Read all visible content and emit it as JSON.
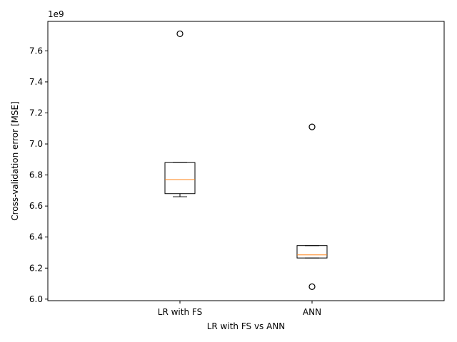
{
  "chart_data": {
    "type": "box",
    "title": "",
    "xlabel": "LR with FS vs ANN",
    "ylabel": "Cross-validation error [MSE]",
    "y_offset_label": "1e9",
    "y_scale_factor": 1000000000,
    "ylim": [
      5.99,
      7.79
    ],
    "yticks": [
      6.0,
      6.2,
      6.4,
      6.6,
      6.8,
      7.0,
      7.2,
      7.4,
      7.6
    ],
    "ytick_labels": [
      "6.0",
      "6.2",
      "6.4",
      "6.6",
      "6.8",
      "7.0",
      "7.2",
      "7.4",
      "7.6"
    ],
    "categories": [
      "LR with FS",
      "ANN"
    ],
    "boxes": [
      {
        "category": "LR with FS",
        "whisker_low": 6.66,
        "q1": 6.68,
        "median": 6.77,
        "q3": 6.88,
        "whisker_high": 6.88,
        "outliers": [
          7.71
        ]
      },
      {
        "category": "ANN",
        "whisker_low": 6.265,
        "q1": 6.265,
        "median": 6.285,
        "q3": 6.345,
        "whisker_high": 6.345,
        "outliers": [
          7.11,
          6.08
        ]
      }
    ],
    "colors": {
      "box": "#000000",
      "median": "#ff7f0e",
      "outlier": "#000000"
    },
    "grid": false,
    "legend": "none"
  }
}
